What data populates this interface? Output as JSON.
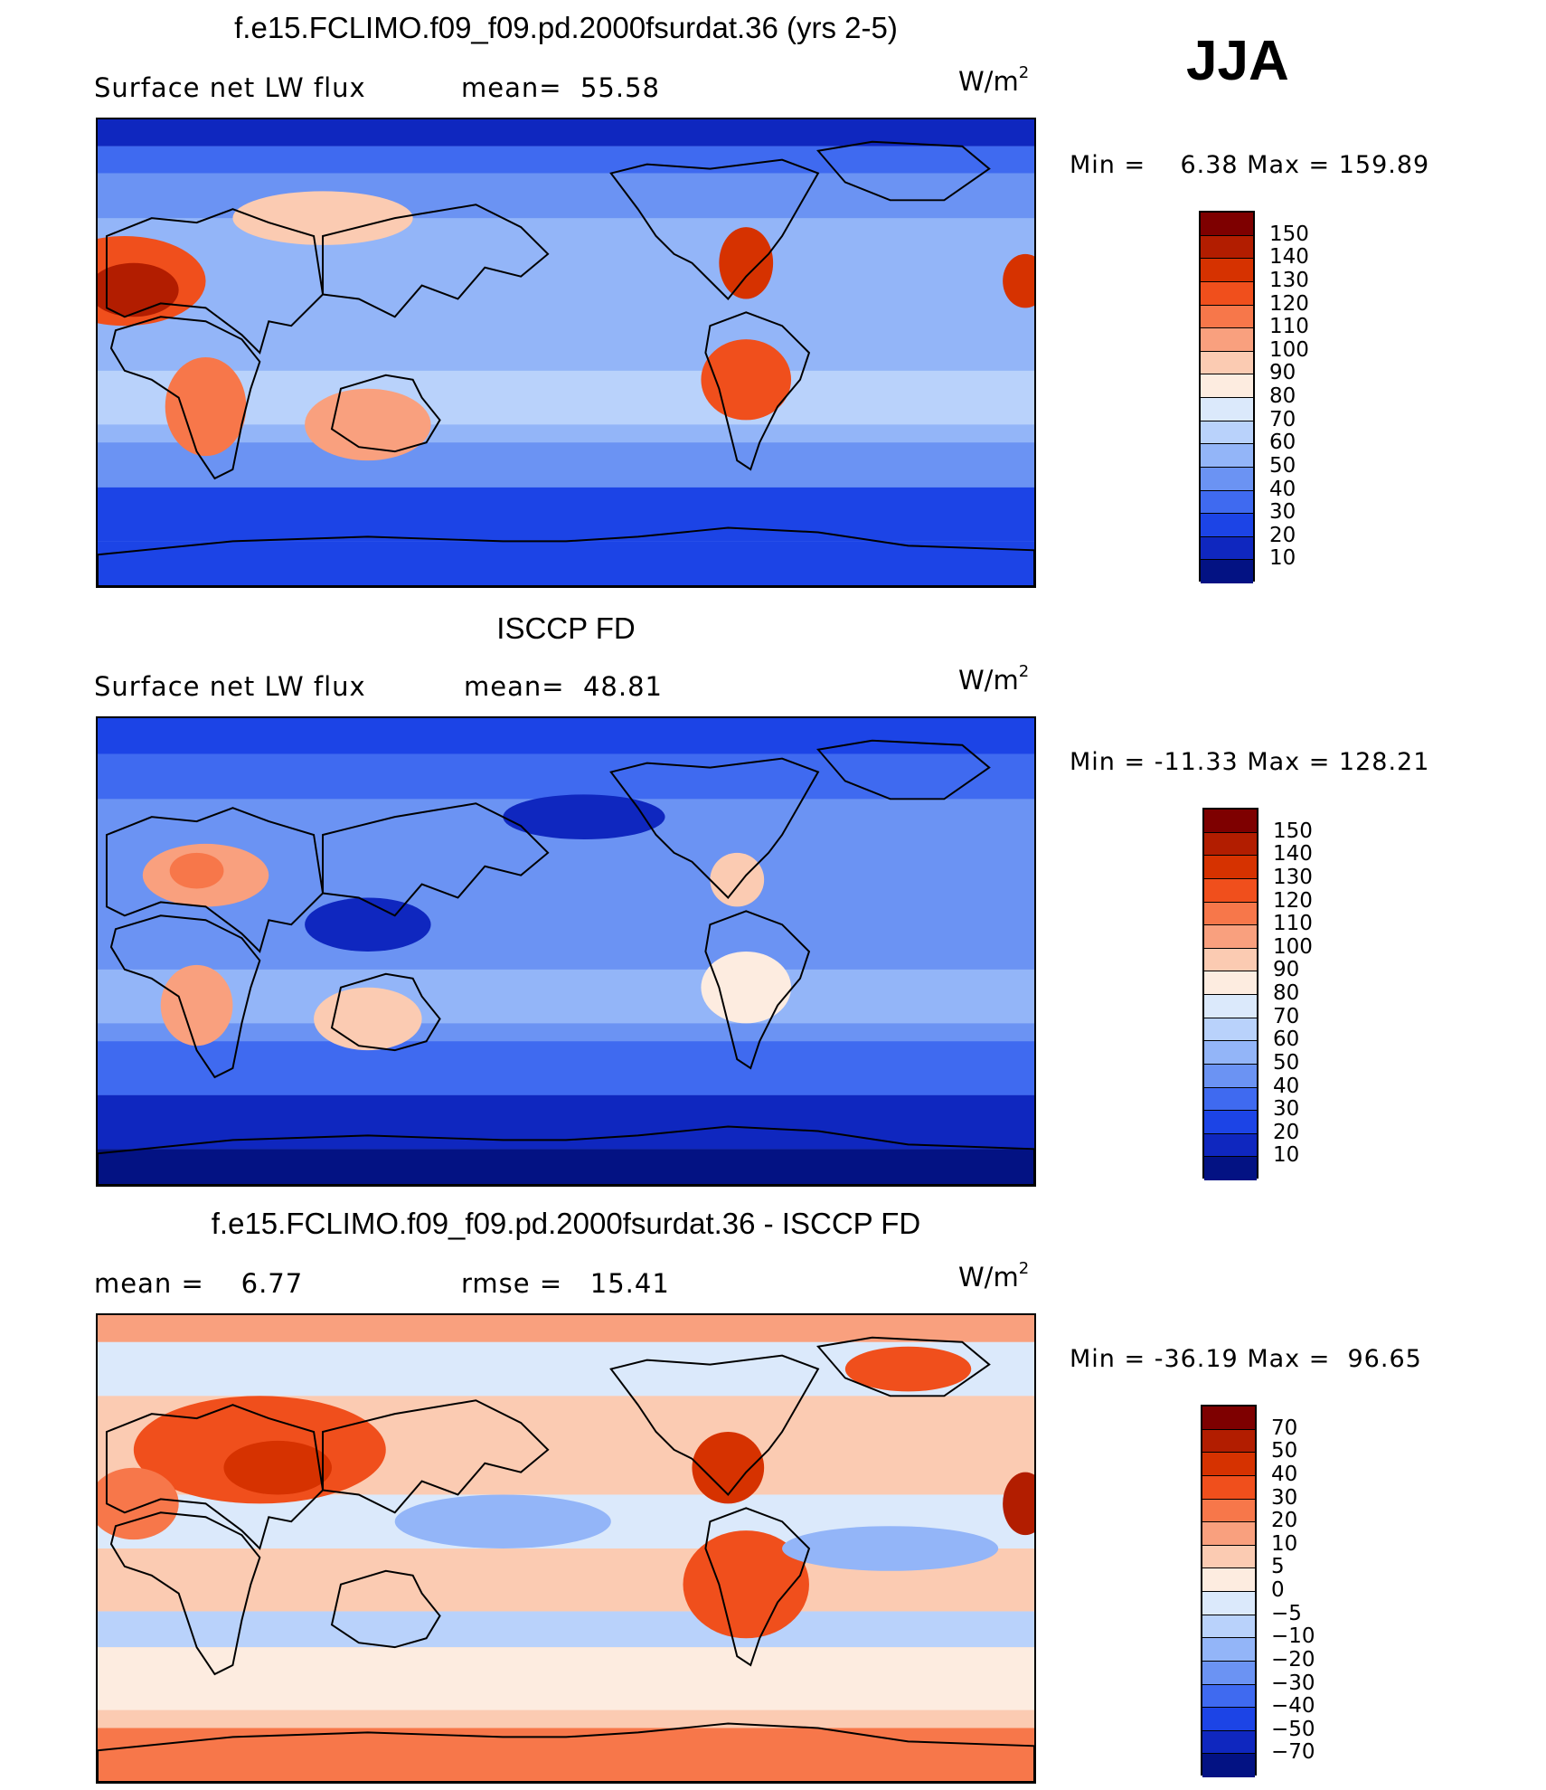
{
  "season": "JJA",
  "units": {
    "base": "W/m",
    "exp": "2"
  },
  "panels": [
    {
      "title": "f.e15.FCLIMO.f09_f09.pd.2000fsurdat.36 (yrs 2-5)",
      "left_label": "Surface net LW flux",
      "mid_label": "mean=  55.58",
      "minmax": "Min =    6.38 Max = 159.89",
      "colorbar": {
        "labels": [
          "150",
          "140",
          "130",
          "120",
          "110",
          "100",
          "90",
          "80",
          "70",
          "60",
          "50",
          "40",
          "30",
          "20",
          "10"
        ],
        "colors": [
          "#7e0000",
          "#b21d00",
          "#d63200",
          "#f04f1c",
          "#f7774a",
          "#f9a07e",
          "#fbcbb2",
          "#fdece0",
          "#dbe9fb",
          "#b9d2fb",
          "#93b5f8",
          "#6b93f3",
          "#3f6af0",
          "#1c44e6",
          "#0f27bf",
          "#031283"
        ]
      },
      "map_style": "abs"
    },
    {
      "title": "ISCCP FD",
      "left_label": "Surface net LW flux",
      "mid_label": "mean=  48.81",
      "minmax": "Min = -11.33 Max = 128.21",
      "colorbar": {
        "labels": [
          "150",
          "140",
          "130",
          "120",
          "110",
          "100",
          "90",
          "80",
          "70",
          "60",
          "50",
          "40",
          "30",
          "20",
          "10"
        ],
        "colors": [
          "#7e0000",
          "#b21d00",
          "#d63200",
          "#f04f1c",
          "#f7774a",
          "#f9a07e",
          "#fbcbb2",
          "#fdece0",
          "#dbe9fb",
          "#b9d2fb",
          "#93b5f8",
          "#6b93f3",
          "#3f6af0",
          "#1c44e6",
          "#0f27bf",
          "#031283"
        ]
      },
      "map_style": "obs"
    },
    {
      "title": "f.e15.FCLIMO.f09_f09.pd.2000fsurdat.36 - ISCCP FD",
      "left_label": "mean =    6.77",
      "mid_label": "rmse =   15.41",
      "minmax": "Min = -36.19 Max =  96.65",
      "colorbar": {
        "labels": [
          "70",
          "50",
          "40",
          "30",
          "20",
          "10",
          "5",
          "0",
          "-5",
          "-10",
          "-20",
          "-30",
          "-40",
          "-50",
          "-70"
        ],
        "colors": [
          "#7e0000",
          "#b21d00",
          "#d63200",
          "#f04f1c",
          "#f7774a",
          "#f9a07e",
          "#fbcbb2",
          "#fdece0",
          "#dbe9fb",
          "#b9d2fb",
          "#93b5f8",
          "#6b93f3",
          "#3f6af0",
          "#1c44e6",
          "#0f27bf",
          "#031283"
        ]
      },
      "map_style": "diff"
    }
  ]
}
